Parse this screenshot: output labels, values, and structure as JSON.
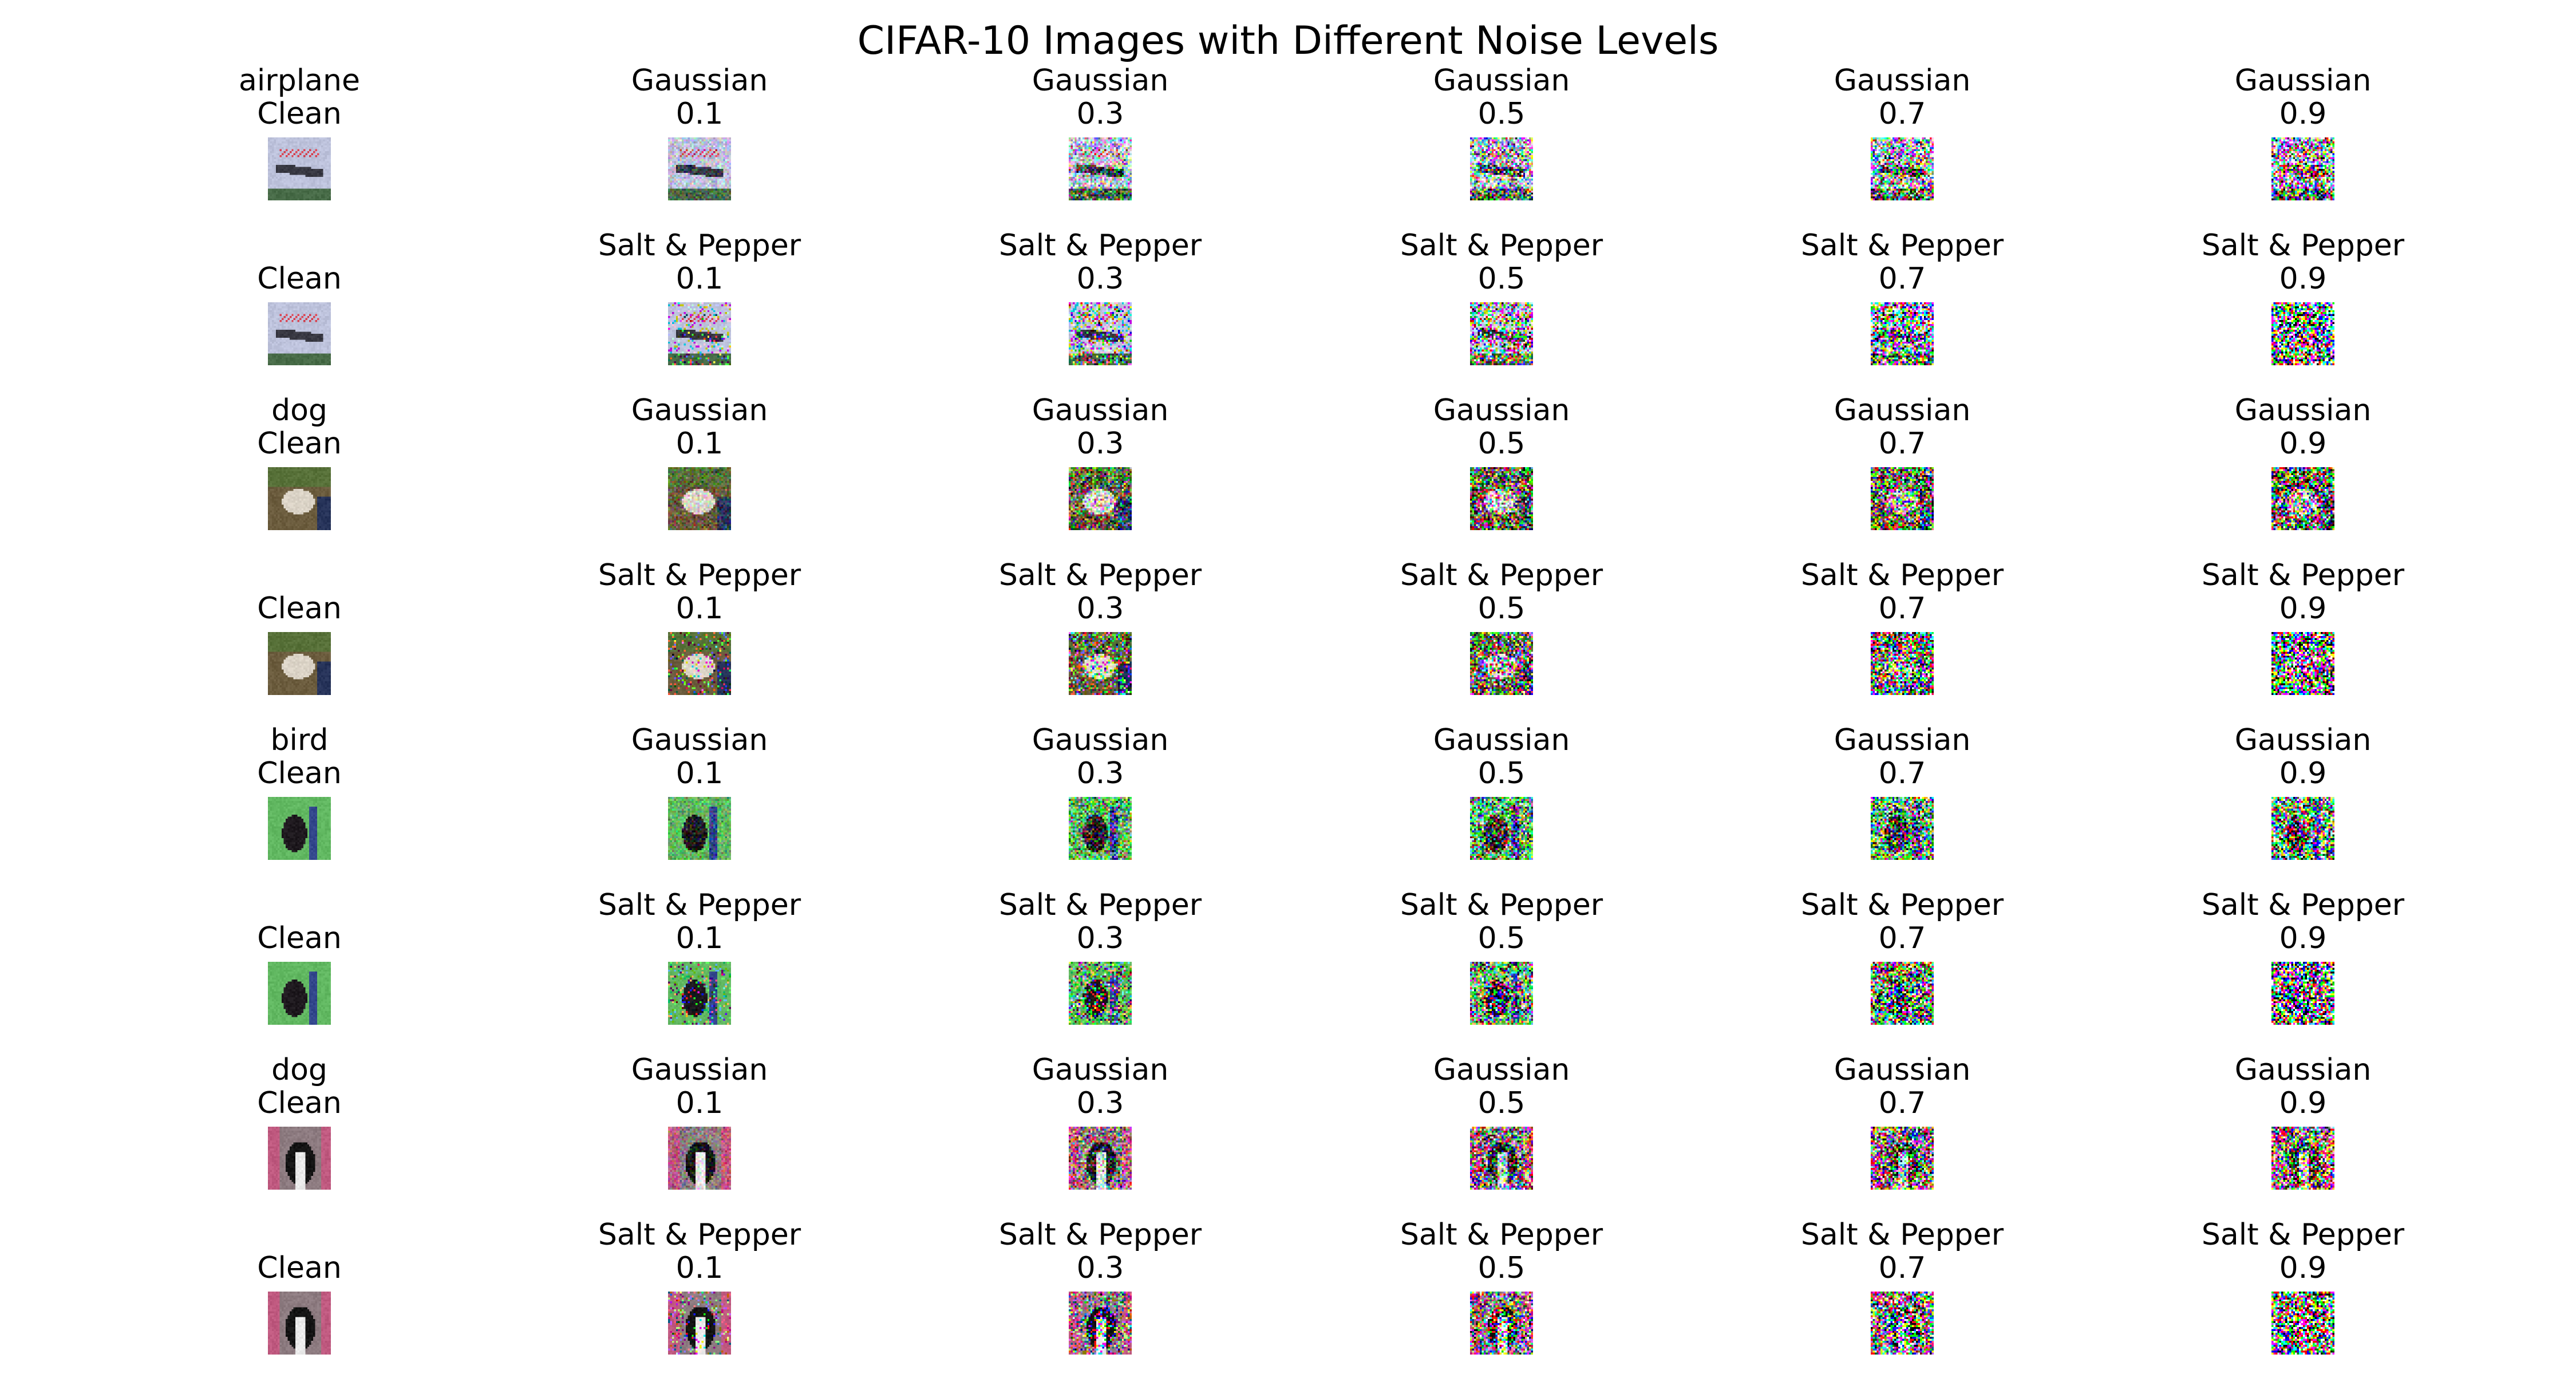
{
  "figure": {
    "title": "CIFAR-10 Images with Different Noise Levels"
  },
  "rows": [
    {
      "cells": [
        {
          "line1": "airplane",
          "line2": "Clean",
          "img": "airplane",
          "noise": "clean",
          "level": 0
        },
        {
          "line1": "Gaussian",
          "line2": "0.1",
          "img": "airplane",
          "noise": "gaussian",
          "level": 0.1
        },
        {
          "line1": "Gaussian",
          "line2": "0.3",
          "img": "airplane",
          "noise": "gaussian",
          "level": 0.3
        },
        {
          "line1": "Gaussian",
          "line2": "0.5",
          "img": "airplane",
          "noise": "gaussian",
          "level": 0.5
        },
        {
          "line1": "Gaussian",
          "line2": "0.7",
          "img": "airplane",
          "noise": "gaussian",
          "level": 0.7
        },
        {
          "line1": "Gaussian",
          "line2": "0.9",
          "img": "airplane",
          "noise": "gaussian",
          "level": 0.9
        }
      ]
    },
    {
      "cells": [
        {
          "line1": "",
          "line2": "Clean",
          "img": "airplane",
          "noise": "clean",
          "level": 0
        },
        {
          "line1": "Salt & Pepper",
          "line2": "0.1",
          "img": "airplane",
          "noise": "sp",
          "level": 0.1
        },
        {
          "line1": "Salt & Pepper",
          "line2": "0.3",
          "img": "airplane",
          "noise": "sp",
          "level": 0.3
        },
        {
          "line1": "Salt & Pepper",
          "line2": "0.5",
          "img": "airplane",
          "noise": "sp",
          "level": 0.5
        },
        {
          "line1": "Salt & Pepper",
          "line2": "0.7",
          "img": "airplane",
          "noise": "sp",
          "level": 0.7
        },
        {
          "line1": "Salt & Pepper",
          "line2": "0.9",
          "img": "airplane",
          "noise": "sp",
          "level": 0.9
        }
      ]
    },
    {
      "cells": [
        {
          "line1": "dog",
          "line2": "Clean",
          "img": "dog1",
          "noise": "clean",
          "level": 0
        },
        {
          "line1": "Gaussian",
          "line2": "0.1",
          "img": "dog1",
          "noise": "gaussian",
          "level": 0.1
        },
        {
          "line1": "Gaussian",
          "line2": "0.3",
          "img": "dog1",
          "noise": "gaussian",
          "level": 0.3
        },
        {
          "line1": "Gaussian",
          "line2": "0.5",
          "img": "dog1",
          "noise": "gaussian",
          "level": 0.5
        },
        {
          "line1": "Gaussian",
          "line2": "0.7",
          "img": "dog1",
          "noise": "gaussian",
          "level": 0.7
        },
        {
          "line1": "Gaussian",
          "line2": "0.9",
          "img": "dog1",
          "noise": "gaussian",
          "level": 0.9
        }
      ]
    },
    {
      "cells": [
        {
          "line1": "",
          "line2": "Clean",
          "img": "dog1",
          "noise": "clean",
          "level": 0
        },
        {
          "line1": "Salt & Pepper",
          "line2": "0.1",
          "img": "dog1",
          "noise": "sp",
          "level": 0.1
        },
        {
          "line1": "Salt & Pepper",
          "line2": "0.3",
          "img": "dog1",
          "noise": "sp",
          "level": 0.3
        },
        {
          "line1": "Salt & Pepper",
          "line2": "0.5",
          "img": "dog1",
          "noise": "sp",
          "level": 0.5
        },
        {
          "line1": "Salt & Pepper",
          "line2": "0.7",
          "img": "dog1",
          "noise": "sp",
          "level": 0.7
        },
        {
          "line1": "Salt & Pepper",
          "line2": "0.9",
          "img": "dog1",
          "noise": "sp",
          "level": 0.9
        }
      ]
    },
    {
      "cells": [
        {
          "line1": "bird",
          "line2": "Clean",
          "img": "bird",
          "noise": "clean",
          "level": 0
        },
        {
          "line1": "Gaussian",
          "line2": "0.1",
          "img": "bird",
          "noise": "gaussian",
          "level": 0.1
        },
        {
          "line1": "Gaussian",
          "line2": "0.3",
          "img": "bird",
          "noise": "gaussian",
          "level": 0.3
        },
        {
          "line1": "Gaussian",
          "line2": "0.5",
          "img": "bird",
          "noise": "gaussian",
          "level": 0.5
        },
        {
          "line1": "Gaussian",
          "line2": "0.7",
          "img": "bird",
          "noise": "gaussian",
          "level": 0.7
        },
        {
          "line1": "Gaussian",
          "line2": "0.9",
          "img": "bird",
          "noise": "gaussian",
          "level": 0.9
        }
      ]
    },
    {
      "cells": [
        {
          "line1": "",
          "line2": "Clean",
          "img": "bird",
          "noise": "clean",
          "level": 0
        },
        {
          "line1": "Salt & Pepper",
          "line2": "0.1",
          "img": "bird",
          "noise": "sp",
          "level": 0.1
        },
        {
          "line1": "Salt & Pepper",
          "line2": "0.3",
          "img": "bird",
          "noise": "sp",
          "level": 0.3
        },
        {
          "line1": "Salt & Pepper",
          "line2": "0.5",
          "img": "bird",
          "noise": "sp",
          "level": 0.5
        },
        {
          "line1": "Salt & Pepper",
          "line2": "0.7",
          "img": "bird",
          "noise": "sp",
          "level": 0.7
        },
        {
          "line1": "Salt & Pepper",
          "line2": "0.9",
          "img": "bird",
          "noise": "sp",
          "level": 0.9
        }
      ]
    },
    {
      "cells": [
        {
          "line1": "dog",
          "line2": "Clean",
          "img": "dog2",
          "noise": "clean",
          "level": 0
        },
        {
          "line1": "Gaussian",
          "line2": "0.1",
          "img": "dog2",
          "noise": "gaussian",
          "level": 0.1
        },
        {
          "line1": "Gaussian",
          "line2": "0.3",
          "img": "dog2",
          "noise": "gaussian",
          "level": 0.3
        },
        {
          "line1": "Gaussian",
          "line2": "0.5",
          "img": "dog2",
          "noise": "gaussian",
          "level": 0.5
        },
        {
          "line1": "Gaussian",
          "line2": "0.7",
          "img": "dog2",
          "noise": "gaussian",
          "level": 0.7
        },
        {
          "line1": "Gaussian",
          "line2": "0.9",
          "img": "dog2",
          "noise": "gaussian",
          "level": 0.9
        }
      ]
    },
    {
      "cells": [
        {
          "line1": "",
          "line2": "Clean",
          "img": "dog2",
          "noise": "clean",
          "level": 0
        },
        {
          "line1": "Salt & Pepper",
          "line2": "0.1",
          "img": "dog2",
          "noise": "sp",
          "level": 0.1
        },
        {
          "line1": "Salt & Pepper",
          "line2": "0.3",
          "img": "dog2",
          "noise": "sp",
          "level": 0.3
        },
        {
          "line1": "Salt & Pepper",
          "line2": "0.5",
          "img": "dog2",
          "noise": "sp",
          "level": 0.5
        },
        {
          "line1": "Salt & Pepper",
          "line2": "0.7",
          "img": "dog2",
          "noise": "sp",
          "level": 0.7
        },
        {
          "line1": "Salt & Pepper",
          "line2": "0.9",
          "img": "dog2",
          "noise": "sp",
          "level": 0.9
        }
      ]
    }
  ]
}
